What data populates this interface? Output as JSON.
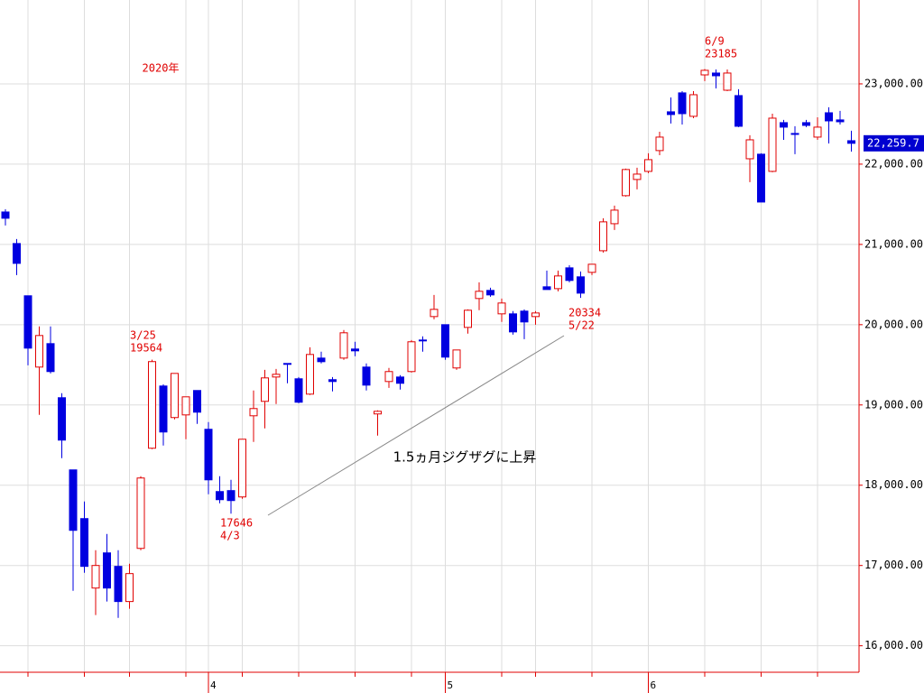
{
  "chart_data": {
    "type": "candlestick",
    "categories": [
      null,
      null,
      null,
      null,
      null,
      null,
      null,
      null,
      null,
      null,
      null,
      null,
      null,
      null,
      null,
      null,
      null,
      null,
      "4",
      null,
      null,
      null,
      null,
      null,
      null,
      null,
      null,
      null,
      null,
      null,
      null,
      null,
      null,
      null,
      null,
      null,
      null,
      null,
      null,
      "5",
      null,
      null,
      null,
      null,
      null,
      null,
      null,
      null,
      null,
      null,
      null,
      null,
      null,
      null,
      null,
      null,
      null,
      "6",
      null,
      null,
      null,
      null,
      null,
      null,
      null,
      null,
      null,
      null,
      null,
      null,
      null,
      null,
      null,
      null,
      null,
      null
    ],
    "open": [
      21404,
      21011,
      20360,
      19472,
      19764,
      19090,
      18191,
      17584,
      16719,
      17157,
      16989,
      16551,
      17213,
      18461,
      19236,
      18843,
      18876,
      19180,
      18697,
      17921,
      17933,
      17854,
      18865,
      19045,
      19348,
      19517,
      19326,
      19135,
      19584,
      19315,
      19584,
      19697,
      19472,
      18888,
      19292,
      19348,
      19416,
      19809,
      20101,
      20000,
      19461,
      19966,
      20326,
      20427,
      20135,
      20135,
      20169,
      20101,
      20472,
      20449,
      20708,
      20596,
      20652,
      20921,
      21258,
      21607,
      21809,
      21910,
      22169,
      22652,
      22888,
      22596,
      23112,
      23135,
      22921,
      22854,
      22067,
      22124,
      21910,
      22517,
      22382,
      22517,
      22337,
      22640,
      22551,
      22292
    ],
    "high": [
      21438,
      21067,
      20360,
      19978,
      19978,
      19146,
      18191,
      17798,
      17191,
      17393,
      17191,
      17022,
      18112,
      19564,
      19258,
      19393,
      19101,
      19180,
      18787,
      18112,
      18067,
      18573,
      19180,
      19438,
      19449,
      19517,
      19348,
      19719,
      19663,
      19348,
      19933,
      19787,
      19517,
      18933,
      19461,
      19371,
      19809,
      19854,
      20371,
      20000,
      19685,
      20191,
      20528,
      20461,
      20326,
      20169,
      20191,
      20169,
      20674,
      20674,
      20742,
      20663,
      20753,
      21326,
      21483,
      21944,
      21955,
      22135,
      22404,
      22831,
      22910,
      22910,
      23185,
      23180,
      23180,
      22933,
      22360,
      22135,
      22629,
      22551,
      22472,
      22551,
      22584,
      22708,
      22663,
      22416
    ],
    "low": [
      21236,
      20618,
      19494,
      18876,
      19393,
      18337,
      16685,
      16910,
      16382,
      16551,
      16348,
      16461,
      17191,
      18449,
      18494,
      18820,
      18573,
      18764,
      17888,
      17775,
      17646,
      17831,
      18539,
      18708,
      19011,
      19270,
      19022,
      19124,
      19517,
      19169,
      19562,
      19607,
      19180,
      18618,
      19213,
      19191,
      19404,
      19663,
      20067,
      19562,
      19438,
      19888,
      20180,
      20348,
      20034,
      19876,
      19820,
      20000,
      20438,
      20416,
      20528,
      20334,
      20618,
      20899,
      21180,
      21596,
      21685,
      21888,
      22112,
      22506,
      22494,
      22573,
      23034,
      22944,
      22910,
      22461,
      21775,
      21528,
      21899,
      22303,
      22124,
      22461,
      22303,
      22258,
      22494,
      22157
    ],
    "close": [
      21326,
      20764,
      19708,
      19865,
      19416,
      18562,
      17438,
      16989,
      17000,
      16719,
      16551,
      16899,
      18090,
      19540,
      18663,
      19393,
      19101,
      18910,
      18067,
      17820,
      17809,
      18573,
      18955,
      19337,
      19382,
      19506,
      19034,
      19629,
      19539,
      19292,
      19899,
      19674,
      19247,
      18921,
      19416,
      19270,
      19787,
      19798,
      20191,
      19596,
      19685,
      20180,
      20416,
      20371,
      20270,
      19910,
      20034,
      20146,
      20438,
      20607,
      20551,
      20393,
      20753,
      21281,
      21427,
      21933,
      21876,
      22056,
      22337,
      22618,
      22629,
      22865,
      23169,
      23101,
      23135,
      22472,
      22303,
      21528,
      22573,
      22461,
      22371,
      22483,
      22461,
      22539,
      22528,
      22259.7
    ],
    "up_color": "#e00000",
    "down_color": "#0000e0",
    "ylim": [
      15670,
      24045
    ],
    "yticks": [
      {
        "value": 16000,
        "label": "16,000.00"
      },
      {
        "value": 17000,
        "label": "17,000.00"
      },
      {
        "value": 18000,
        "label": "18,000.00"
      },
      {
        "value": 19000,
        "label": "19,000.00"
      },
      {
        "value": 20000,
        "label": "20,000.00"
      },
      {
        "value": 21000,
        "label": "21,000.00"
      },
      {
        "value": 22000,
        "label": "22,000.00"
      },
      {
        "value": 23000,
        "label": "23,000.00"
      }
    ],
    "grid": true,
    "last_price": {
      "value": 22259.7,
      "label": "22,259.7"
    },
    "year_label": "2020年",
    "annotations": [
      [
        "3/25",
        "19564"
      ],
      [
        "17646",
        "4/3"
      ],
      [
        "20334",
        "5/22"
      ],
      [
        "6/9",
        "23185"
      ]
    ],
    "comment": "1.5ヵ月ジグザグに上昇"
  }
}
